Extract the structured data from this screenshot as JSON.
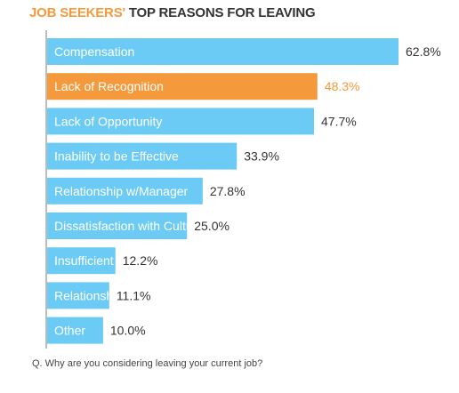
{
  "title": {
    "highlight": "JOB SEEKERS'",
    "rest": " TOP REASONS FOR LEAVING"
  },
  "question": "Q. Why are you considering leaving your current job?",
  "colors": {
    "bar": "#6ccbf4",
    "highlight_bar": "#f49a3c",
    "axis": "#7a7a7a",
    "value_text": "#333333",
    "highlight_text": "#f49a3c",
    "bar_label": "#ffffff"
  },
  "chart_data": {
    "type": "bar",
    "orientation": "horizontal",
    "categories": [
      "Compensation",
      "Lack of Recognition",
      "Lack of Opportunity",
      "Inability to be Effective",
      "Relationship w/Manager",
      "Dissatisfaction with Culture",
      "Insufficient Job Title",
      "Relationship w/ Peers",
      "Other"
    ],
    "values": [
      62.8,
      48.3,
      47.7,
      33.9,
      27.8,
      25.0,
      12.2,
      11.1,
      10.0
    ],
    "value_labels": [
      "62.8%",
      "48.3%",
      "47.7%",
      "33.9%",
      "27.8%",
      "25.0%",
      "12.2%",
      "11.1%",
      "10.0%"
    ],
    "highlight_index": 1,
    "xlim": [
      0,
      62.8
    ],
    "grid": false,
    "legend": "none"
  }
}
